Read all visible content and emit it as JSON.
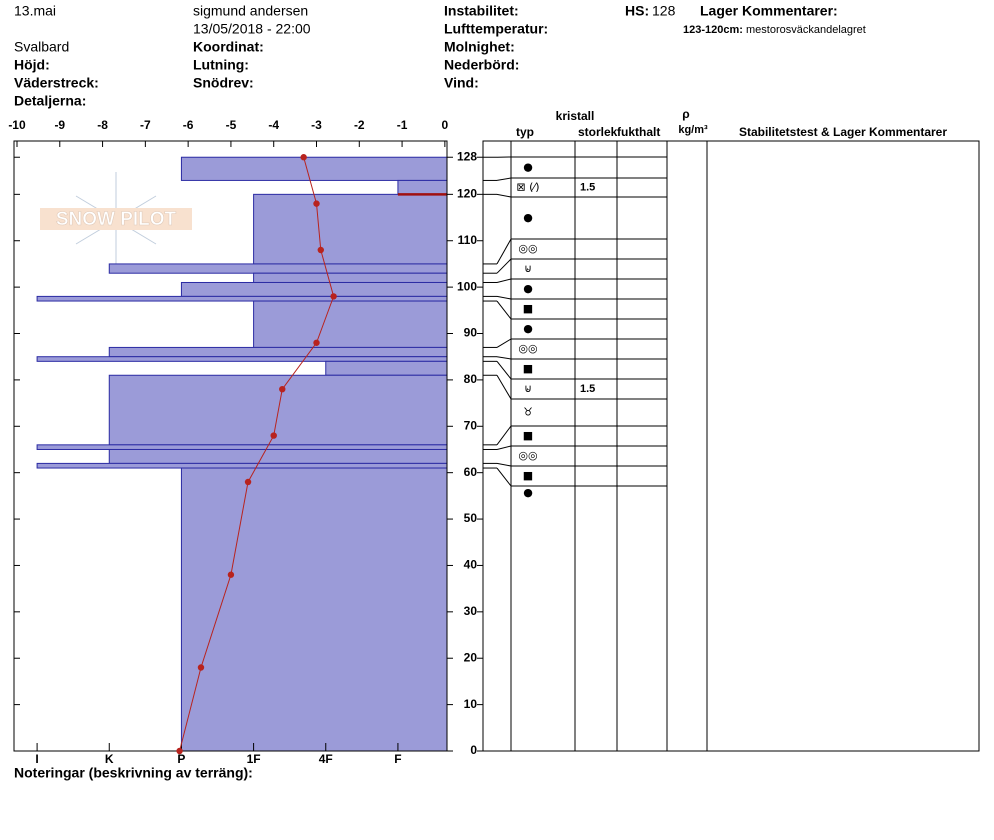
{
  "header": {
    "date": "13.mai",
    "observer": "sigmund andersen",
    "datetime": "13/05/2018 - 22:00",
    "location": "Svalbard",
    "labels": [
      "Höjd:",
      "Väderstreck:",
      "Detaljerna:",
      "Koordinat:",
      "Lutning:",
      "Snödrev:",
      "Instabilitet:",
      "Lufttemperatur:",
      "Molnighet:",
      "Nederbörd:",
      "Vind:"
    ],
    "hs_label": "HS:",
    "hs": 128,
    "layer_comments_title": "Lager Kommentarer:",
    "layer_comment": {
      "range": "123-120cm:",
      "text": "mestorosväckandelagret"
    }
  },
  "logo": "SNOW PILOT",
  "notes_label": "Noteringar (beskrivning av terräng):",
  "chart_data": {
    "type": "profile",
    "xlim": [
      -10.07,
      0.05
    ],
    "xticks": [
      -10,
      -9,
      -8,
      -7,
      -6,
      -5,
      -4,
      -3,
      -2,
      -1,
      0
    ],
    "ylim": [
      0,
      131.5
    ],
    "yticks": [
      0,
      10,
      20,
      30,
      40,
      50,
      60,
      70,
      80,
      90,
      100,
      110,
      120,
      128
    ],
    "hlim": [
      6.32,
      0.32
    ],
    "hticks": [
      {
        "value": 6,
        "label": "I"
      },
      {
        "value": 5,
        "label": "K"
      },
      {
        "value": 4,
        "label": "P"
      },
      {
        "value": 3,
        "label": "1F"
      },
      {
        "value": 2,
        "label": "4F"
      },
      {
        "value": 1,
        "label": "F"
      }
    ],
    "temperature": {
      "color": "#b8231e",
      "depth": [
        128,
        118,
        108,
        98,
        88,
        78,
        68,
        58,
        38,
        18,
        0
      ],
      "values": [
        -3.3,
        -3.0,
        -2.9,
        -2.6,
        -3.0,
        -3.8,
        -4.0,
        -4.6,
        -5.0,
        -5.7,
        -6.2
      ]
    },
    "bar_color": "#9b9bd8",
    "bar_edge": "#2b2ba3",
    "concern_color": "#a01010",
    "table_headers": {
      "crystal": "kristall",
      "type": "typ",
      "size": "storlek",
      "moisture": "fukthalt",
      "rho": "ρ",
      "density_unit": "kg/m³",
      "comments": "Stabilitetstest & Lager Kommentarer"
    },
    "layers": [
      {
        "top": 128,
        "bottom": 123,
        "hardness": 4,
        "grain": "●",
        "size": null
      },
      {
        "top": 123,
        "bottom": 120,
        "hardness": 1,
        "grain": "⊠ (⁄)",
        "size": "1.5"
      },
      {
        "top": 120,
        "bottom": 105,
        "hardness": 3,
        "grain": "●",
        "size": null
      },
      {
        "top": 105,
        "bottom": 103,
        "hardness": 5,
        "grain": "◎◎",
        "size": null
      },
      {
        "top": 103,
        "bottom": 101,
        "hardness": 3,
        "grain": "⊌",
        "size": null
      },
      {
        "top": 101,
        "bottom": 98,
        "hardness": 4,
        "grain": "●",
        "size": null
      },
      {
        "top": 98,
        "bottom": 97,
        "hardness": 6,
        "grain": "■",
        "size": null
      },
      {
        "top": 97,
        "bottom": 87,
        "hardness": 3,
        "grain": "●",
        "size": null
      },
      {
        "top": 87,
        "bottom": 85,
        "hardness": 5,
        "grain": "◎◎",
        "size": null
      },
      {
        "top": 85,
        "bottom": 84,
        "hardness": 6,
        "grain": "■",
        "size": null
      },
      {
        "top": 84,
        "bottom": 81,
        "hardness": 2,
        "grain": "⊌",
        "size": "1.5"
      },
      {
        "top": 81,
        "bottom": 66,
        "hardness": 5,
        "grain": "♉",
        "size": null
      },
      {
        "top": 66,
        "bottom": 65,
        "hardness": 6,
        "grain": "■",
        "size": null
      },
      {
        "top": 65,
        "bottom": 62,
        "hardness": 5,
        "grain": "◎◎",
        "size": null
      },
      {
        "top": 62,
        "bottom": 61,
        "hardness": 6,
        "grain": "■",
        "size": null
      },
      {
        "top": 61,
        "bottom": 0,
        "hardness": 4,
        "grain": "●",
        "size": null
      }
    ],
    "concern_layer": 1
  }
}
